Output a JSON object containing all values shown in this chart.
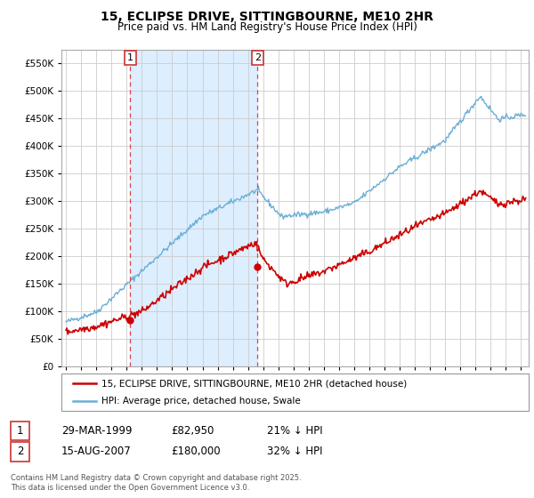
{
  "title": "15, ECLIPSE DRIVE, SITTINGBOURNE, ME10 2HR",
  "subtitle": "Price paid vs. HM Land Registry's House Price Index (HPI)",
  "ytick_values": [
    0,
    50000,
    100000,
    150000,
    200000,
    250000,
    300000,
    350000,
    400000,
    450000,
    500000,
    550000
  ],
  "ylim": [
    0,
    575000
  ],
  "xlim_start": 1994.7,
  "xlim_end": 2025.5,
  "xtick_years": [
    1995,
    1996,
    1997,
    1998,
    1999,
    2000,
    2001,
    2002,
    2003,
    2004,
    2005,
    2006,
    2007,
    2008,
    2009,
    2010,
    2011,
    2012,
    2013,
    2014,
    2015,
    2016,
    2017,
    2018,
    2019,
    2020,
    2021,
    2022,
    2023,
    2024,
    2025
  ],
  "hpi_color": "#6baed6",
  "price_color": "#cc0000",
  "shade_color": "#ddeeff",
  "vline_color": "#dd4444",
  "marker1_date": 1999.24,
  "marker1_price": 82950,
  "marker2_date": 2007.62,
  "marker2_price": 180000,
  "legend_line1": "15, ECLIPSE DRIVE, SITTINGBOURNE, ME10 2HR (detached house)",
  "legend_line2": "HPI: Average price, detached house, Swale",
  "row1_date": "29-MAR-1999",
  "row1_price": "£82,950",
  "row1_hpi": "21% ↓ HPI",
  "row2_date": "15-AUG-2007",
  "row2_price": "£180,000",
  "row2_hpi": "32% ↓ HPI",
  "footer": "Contains HM Land Registry data © Crown copyright and database right 2025.\nThis data is licensed under the Open Government Licence v3.0."
}
